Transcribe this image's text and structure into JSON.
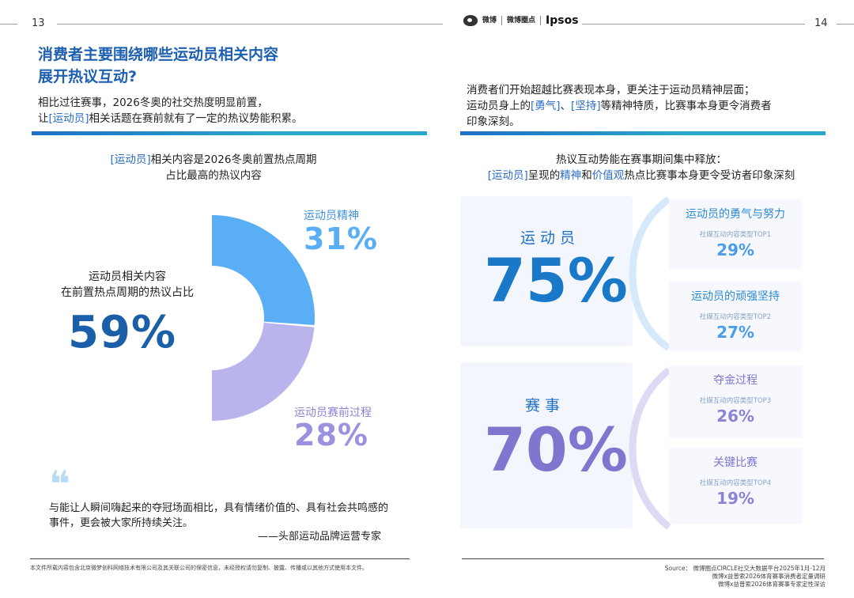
{
  "left_page": {
    "page_number": "13",
    "title_line1": "消费者主要围绕哪些运动员相关内容",
    "title_line2": "展开热议互动?",
    "lead_line1": "相比过往赛事，2026冬奥的社交热度明显前置，",
    "lead_line2_pre": "让",
    "lead_line2_hl": "[运动员]",
    "lead_line2_post": "相关话题在赛前就有了一定的热议势能积累。",
    "chart_heading_hl": "[运动员]",
    "chart_heading_line1_post": "相关内容是2026冬奥前置热点周期",
    "chart_heading_line2": "占比最高的热议内容",
    "center_label_line1": "运动员相关内容",
    "center_label_line2": "在前置热点周期的热议占比",
    "center_value": "59%",
    "quote_mark": "❝",
    "quote_text": "与能让人瞬间嗨起来的夺冠场面相比，具有情绪价值的、具有社会共鸣感的事件，更会被大家所持续关注。",
    "quote_source": "——头部运动品牌运营专家",
    "footer_note": "本文件所载内容包含北京微梦创科网络技术有限公司及其关联公司的保密信息，未经授权请勿复制、披露、传播或以其他方式使用本文件。"
  },
  "chart_data": {
    "type": "pie",
    "title": "[运动员]相关内容是2026冬奥前置热点周期占比最高的热议内容",
    "total_share_label": "59%",
    "slices": [
      {
        "name": "运动员精神",
        "value": 31,
        "label": "31%",
        "color": "#5aaef5"
      },
      {
        "name": "运动员赛前过程",
        "value": 28,
        "label": "28%",
        "color": "#b9b4ec"
      }
    ]
  },
  "right_page": {
    "page_number": "14",
    "logos": {
      "weibo": "微博",
      "circle": "微博圈点",
      "ipsos": "Ipsos"
    },
    "lead_line1": "消费者们开始超越比赛表现本身，更关注于运动员精神层面；",
    "lead_line2_pre": "运动员身上的",
    "lead_line2_hl1": "[勇气]",
    "lead_line2_mid": "、",
    "lead_line2_hl2": "[坚持]",
    "lead_line2_post": "等精神特质，比赛事本身更令消费者",
    "lead_line3": "印象深刻。",
    "heading_line1": "热议互动势能在赛事期间集中释放：",
    "heading_line2_hl1": "[运动员]",
    "heading_line2_mid1": "呈现的",
    "heading_line2_hl2": "精神",
    "heading_line2_mid2": "和",
    "heading_line2_hl3": "价值观",
    "heading_line2_post": "热点比赛事本身更令受访者印象深刻",
    "groups": [
      {
        "label": "运动员",
        "value": "75%",
        "items": [
          {
            "title": "运动员的勇气与努力",
            "category": "社媒互动内容类型TOP1",
            "value": "29%"
          },
          {
            "title": "运动员的顽强坚持",
            "category": "社媒互动内容类型TOP2",
            "value": "27%"
          }
        ]
      },
      {
        "label": "赛事",
        "value": "70%",
        "items": [
          {
            "title": "夺金过程",
            "category": "社媒互动内容类型TOP3",
            "value": "26%"
          },
          {
            "title": "关键比赛",
            "category": "社媒互动内容类型TOP4",
            "value": "19%"
          }
        ]
      }
    ],
    "source_line1": "Source： 微博圈点CIRCLE社交大数据平台2025年1月-12月",
    "source_line2": "微博x益普索2026体育赛事消费者定量调研",
    "source_line3": "微博x益普索2026体育赛事专家定性深访"
  },
  "colors": {
    "title_blue": "#1d5fb0",
    "accent_blue": "#2a6dc6",
    "slice_blue": "#5aaef5",
    "slice_lavender": "#b9b4ec",
    "dark_blue_pct": "#1a5fa8",
    "purple_pct": "#8c83d6"
  },
  "icons": [
    "weibo-logo-icon",
    "quote-icon"
  ]
}
